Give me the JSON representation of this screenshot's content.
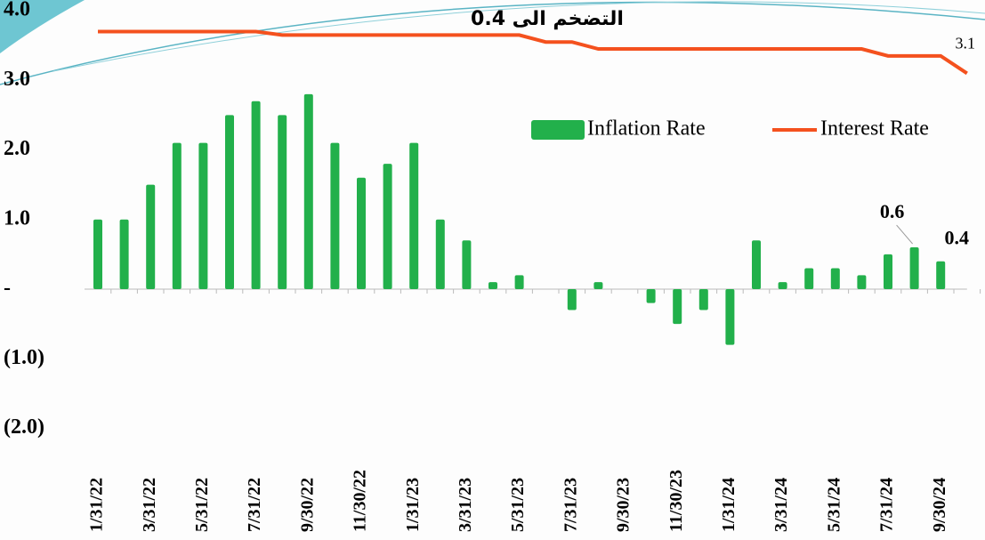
{
  "chart_data": {
    "type": "bar",
    "title": "التضخم الى 0.4",
    "categories": [
      "1/31/22",
      null,
      "3/31/22",
      null,
      "5/31/22",
      null,
      "7/31/22",
      null,
      "9/30/22",
      null,
      "11/30/22",
      null,
      "1/31/23",
      null,
      "3/31/23",
      null,
      "5/31/23",
      null,
      "7/31/23",
      null,
      "9/30/23",
      null,
      "11/30/23",
      null,
      "1/31/24",
      null,
      "3/31/24",
      null,
      "5/31/24",
      null,
      "7/31/24",
      null,
      "9/30/24",
      null
    ],
    "series": [
      {
        "name": "Inflation Rate",
        "type": "bar",
        "color": "#22b04b",
        "values": [
          1.0,
          1.0,
          1.5,
          2.1,
          2.1,
          2.5,
          2.7,
          2.5,
          2.8,
          2.1,
          1.6,
          1.8,
          2.1,
          1.0,
          0.7,
          0.1,
          0.2,
          0,
          -0.3,
          0.1,
          0,
          -0.2,
          -0.5,
          -0.3,
          -0.8,
          0.7,
          0.1,
          0.3,
          0.3,
          0.2,
          0.5,
          0.6,
          0.4,
          null
        ]
      },
      {
        "name": "Interest Rate",
        "type": "line",
        "color": "#f4511e",
        "values": [
          3.7,
          3.7,
          3.7,
          3.7,
          3.7,
          3.7,
          3.7,
          3.65,
          3.65,
          3.65,
          3.65,
          3.65,
          3.65,
          3.65,
          3.65,
          3.65,
          3.65,
          3.55,
          3.55,
          3.45,
          3.45,
          3.45,
          3.45,
          3.45,
          3.45,
          3.45,
          3.45,
          3.45,
          3.45,
          3.45,
          3.35,
          3.35,
          3.35,
          3.1
        ]
      }
    ],
    "labeled_points": [
      [
        0,
        31
      ],
      [
        0,
        32
      ],
      [
        1,
        33
      ]
    ],
    "ylim": [
      -2,
      4
    ],
    "yticks": [
      {
        "value": 4,
        "label": "4.0"
      },
      {
        "value": 3,
        "label": "3.0"
      },
      {
        "value": 2,
        "label": "2.0"
      },
      {
        "value": 1,
        "label": "1.0"
      },
      {
        "value": 0,
        "label": "-"
      },
      {
        "value": -1,
        "label": "(1.0)"
      },
      {
        "value": -2,
        "label": "(2.0)"
      }
    ],
    "legend": "upper right"
  }
}
